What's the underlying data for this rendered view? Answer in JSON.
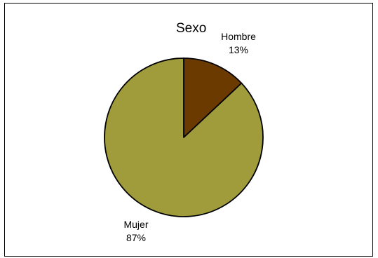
{
  "chart_data": {
    "type": "pie",
    "title": "Sexo",
    "slices": [
      {
        "label": "Hombre",
        "value": 13,
        "value_label": "13%",
        "color": "#6b3a00"
      },
      {
        "label": "Mujer",
        "value": 87,
        "value_label": "87%",
        "color": "#a09c3c"
      }
    ],
    "start_angle_deg": 0,
    "direction": "clockwise",
    "legend": "none"
  }
}
